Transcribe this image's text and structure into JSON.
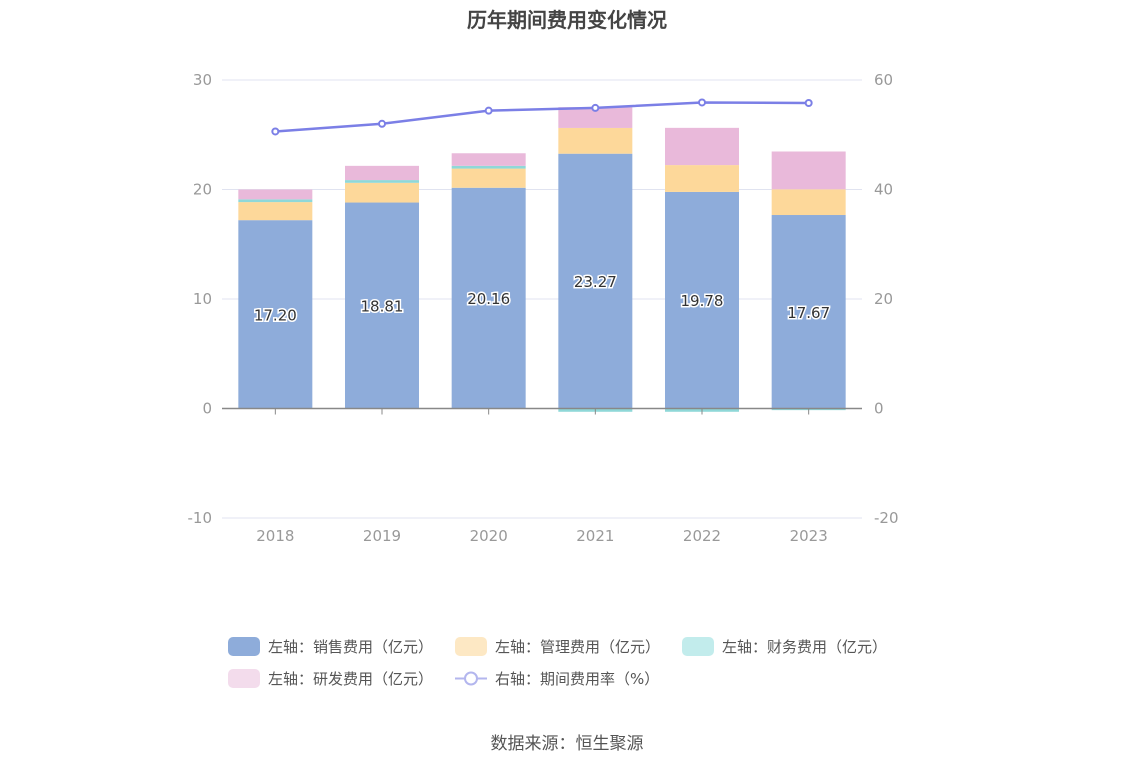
{
  "chart_data": {
    "type": "bar",
    "title": "历年期间费用变化情况",
    "categories": [
      "2018",
      "2019",
      "2020",
      "2021",
      "2022",
      "2023"
    ],
    "series": [
      {
        "name": "左轴：销售费用（亿元）",
        "type": "bar",
        "axis": "left",
        "color": "#8eacda",
        "values": [
          17.2,
          18.81,
          20.16,
          23.27,
          19.78,
          17.67
        ]
      },
      {
        "name": "左轴：管理费用（亿元）",
        "type": "bar",
        "axis": "left",
        "color": "#fdd89a",
        "values": [
          1.65,
          1.8,
          1.75,
          2.35,
          2.45,
          2.35
        ]
      },
      {
        "name": "左轴：财务费用（亿元）",
        "type": "bar",
        "axis": "left",
        "color": "#8fd8d8",
        "values": [
          0.25,
          0.25,
          0.25,
          -0.3,
          -0.3,
          -0.15
        ]
      },
      {
        "name": "左轴：研发费用（亿元）",
        "type": "bar",
        "axis": "left",
        "color": "#e9b9da",
        "values": [
          0.9,
          1.3,
          1.15,
          1.9,
          3.4,
          3.45
        ]
      },
      {
        "name": "右轴：期间费用率（%）",
        "type": "line",
        "axis": "right",
        "color": "#7b7fe6",
        "values": [
          50.6,
          52.0,
          54.4,
          54.9,
          55.9,
          55.8
        ]
      }
    ],
    "y_left": {
      "min": -10,
      "max": 30,
      "ticks": [
        -10,
        0,
        10,
        20,
        30
      ]
    },
    "y_right": {
      "min": -20,
      "max": 60,
      "ticks": [
        -20,
        0,
        20,
        40,
        60
      ]
    },
    "data_labels": [
      "17.20",
      "18.81",
      "20.16",
      "23.27",
      "19.78",
      "17.67"
    ],
    "grid": true,
    "legend_position": "bottom"
  },
  "source": "数据来源：恒生聚源"
}
